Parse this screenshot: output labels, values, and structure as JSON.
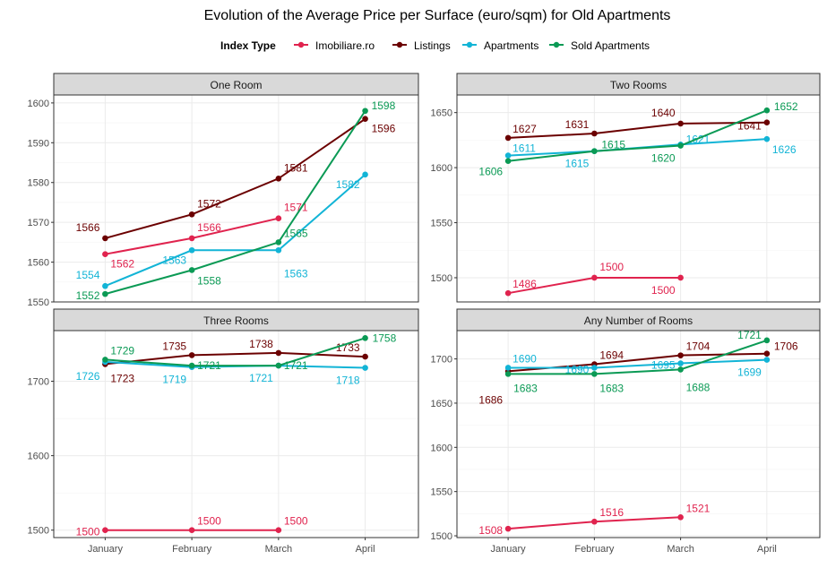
{
  "chart_data": {
    "type": "line",
    "title": "Evolution of the Average Price per Surface (euro/sqm) for Old Apartments",
    "legend": {
      "title": "Index Type",
      "placement": "top",
      "entries": [
        "Imobiliare.ro",
        "Listings",
        "Apartments",
        "Sold Apartments"
      ]
    },
    "colors": {
      "Imobiliare.ro": "#E0234E",
      "Listings": "#6B0000",
      "Apartments": "#12B4D6",
      "Sold Apartments": "#0B9A55",
      "strip_background": "#D9D9D9",
      "grid": "#EBEBEB"
    },
    "grid": true,
    "x": [
      "January",
      "February",
      "March",
      "April"
    ],
    "panels": [
      {
        "title": "One Room",
        "ylim": [
          1550,
          1602
        ],
        "yticks": [
          1550,
          1560,
          1570,
          1580,
          1590,
          1600
        ],
        "series": [
          {
            "name": "Imobiliare.ro",
            "values": [
              1562,
              1566,
              1571,
              null
            ]
          },
          {
            "name": "Listings",
            "values": [
              1566,
              1572,
              1581,
              1596
            ]
          },
          {
            "name": "Apartments",
            "values": [
              1554,
              1563,
              1563,
              1582
            ]
          },
          {
            "name": "Sold Apartments",
            "values": [
              1552,
              1558,
              1565,
              1598
            ]
          }
        ]
      },
      {
        "title": "Two Rooms",
        "ylim": [
          1478,
          1666
        ],
        "yticks": [
          1500,
          1550,
          1600,
          1650
        ],
        "series": [
          {
            "name": "Imobiliare.ro",
            "values": [
              1486,
              1500,
              1500,
              null
            ]
          },
          {
            "name": "Listings",
            "values": [
              1627,
              1631,
              1640,
              1641
            ]
          },
          {
            "name": "Apartments",
            "values": [
              1611,
              1615,
              1621,
              1626
            ]
          },
          {
            "name": "Sold Apartments",
            "values": [
              1606,
              1615,
              1620,
              1652
            ]
          }
        ]
      },
      {
        "title": "Three Rooms",
        "ylim": [
          1490,
          1768
        ],
        "yticks": [
          1500,
          1600,
          1700
        ],
        "series": [
          {
            "name": "Imobiliare.ro",
            "values": [
              1500,
              1500,
              1500,
              null
            ]
          },
          {
            "name": "Listings",
            "values": [
              1723,
              1735,
              1738,
              1733
            ]
          },
          {
            "name": "Apartments",
            "values": [
              1726,
              1719,
              1721,
              1718
            ]
          },
          {
            "name": "Sold Apartments",
            "values": [
              1729,
              1721,
              1721,
              1758
            ]
          }
        ]
      },
      {
        "title": "Any Number of Rooms",
        "ylim": [
          1498,
          1732
        ],
        "yticks": [
          1500,
          1550,
          1600,
          1650,
          1700
        ],
        "series": [
          {
            "name": "Imobiliare.ro",
            "values": [
              1508,
              1516,
              1521,
              null
            ]
          },
          {
            "name": "Listings",
            "values": [
              1686,
              1694,
              1704,
              1706
            ]
          },
          {
            "name": "Apartments",
            "values": [
              1690,
              1690,
              1695,
              1699
            ]
          },
          {
            "name": "Sold Apartments",
            "values": [
              1683,
              1683,
              1688,
              1721
            ]
          }
        ]
      }
    ]
  }
}
